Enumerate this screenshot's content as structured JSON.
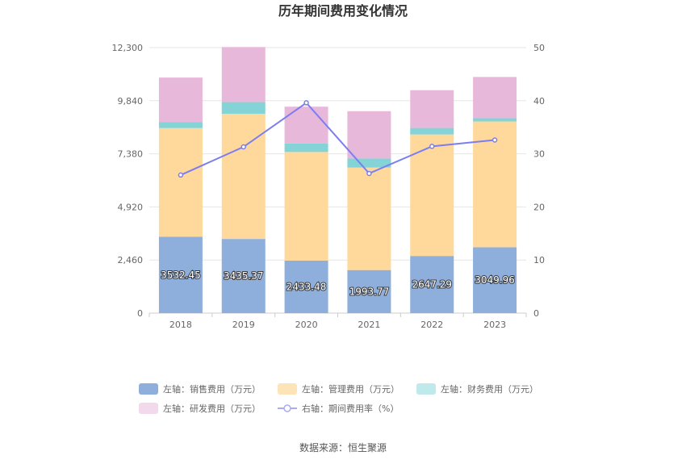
{
  "chart_data": {
    "type": "bar",
    "stacked": true,
    "title": "历年期间费用变化情况",
    "categories": [
      "2018",
      "2019",
      "2020",
      "2021",
      "2022",
      "2023"
    ],
    "left_axis": {
      "min": 0,
      "max": 12300,
      "ticks": [
        "0",
        "2,460",
        "4,920",
        "7,380",
        "9,840",
        "12,300"
      ],
      "tick_values": [
        0,
        2460,
        4920,
        7380,
        9840,
        12300
      ]
    },
    "right_axis": {
      "min": 0,
      "max": 50,
      "ticks": [
        "0",
        "10",
        "20",
        "30",
        "40",
        "50"
      ],
      "tick_values": [
        0,
        10,
        20,
        30,
        40,
        50
      ]
    },
    "series": [
      {
        "name": "左轴：销售费用（万元）",
        "color": "#8eaedb",
        "axis": "left",
        "values": [
          3532.45,
          3435.37,
          2433.48,
          1993.77,
          2647.29,
          3049.96
        ],
        "labels": [
          "3532.45",
          "3435.37",
          "2433.48",
          "1993.77",
          "2647.29",
          "3049.96"
        ]
      },
      {
        "name": "左轴：管理费用（万元）",
        "color": "#ffd99c",
        "axis": "left",
        "values": [
          5040,
          5800,
          5030,
          4750,
          5630,
          5830
        ]
      },
      {
        "name": "左轴：财务费用（万元）",
        "color": "#84d3d6",
        "axis": "left",
        "values": [
          270,
          540,
          400,
          420,
          300,
          150
        ]
      },
      {
        "name": "左轴：研发费用（万元）",
        "color": "#e8b8da",
        "axis": "left",
        "values": [
          2070,
          2550,
          1700,
          2190,
          1750,
          1910
        ]
      }
    ],
    "line_series": {
      "name": "右轴：期间费用率（%）",
      "color": "#7b7ef0",
      "axis": "right",
      "values": [
        26.0,
        31.3,
        39.6,
        26.3,
        31.4,
        32.6
      ]
    },
    "source": "数据来源：恒生聚源"
  }
}
